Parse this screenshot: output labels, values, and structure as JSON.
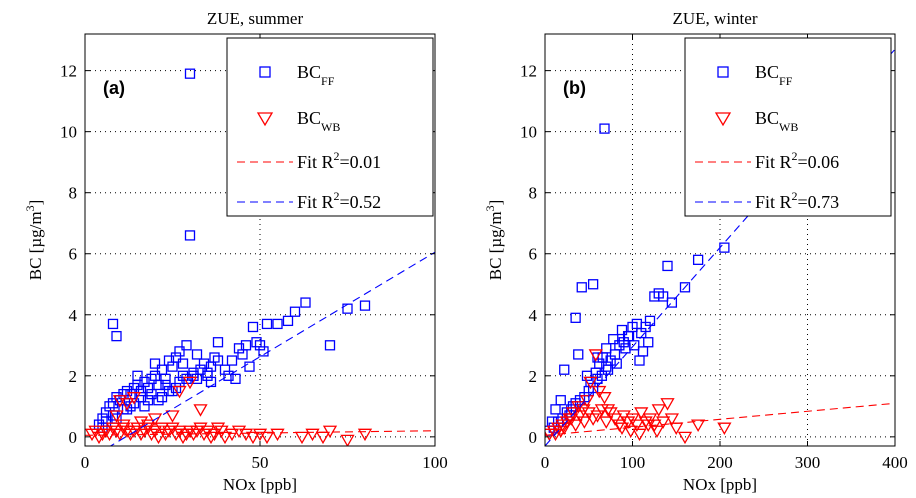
{
  "chart_data": [
    {
      "type": "scatter",
      "panel": "(a)",
      "title": "ZUE, summer",
      "xlabel": "NOx [ppb]",
      "ylabel": "BC [µg/m³]",
      "ylabel_parts": {
        "main": "BC [µg/m",
        "sup": "3",
        "end": "]"
      },
      "xlim": [
        0,
        100
      ],
      "ylim": [
        -0.3,
        13.2
      ],
      "xticks": [
        0,
        50,
        100
      ],
      "yticks": [
        0,
        2,
        4,
        6,
        8,
        10,
        12
      ],
      "grid": "dotted",
      "legend_placement": "top-right",
      "legend": [
        {
          "name": "BC",
          "sub": "FF",
          "sup": "",
          "marker": "square",
          "color": "#0000ff"
        },
        {
          "name": "BC",
          "sub": "WB",
          "sup": "",
          "marker": "triangle-down",
          "color": "#ff0000"
        },
        {
          "name": "Fit R",
          "sub": "",
          "sup": "2",
          "tail": "=0.01",
          "marker": "dashed-line",
          "color": "#ff0000"
        },
        {
          "name": "Fit R",
          "sub": "",
          "sup": "2",
          "tail": "=0.52",
          "marker": "dashed-line",
          "color": "#0000ff"
        }
      ],
      "series": [
        {
          "name": "BC_FF",
          "color": "#0000ff",
          "marker": "square",
          "x": [
            30,
            30,
            8,
            9,
            4,
            5,
            6,
            7,
            8,
            9,
            10,
            11,
            12,
            13,
            14,
            15,
            16,
            17,
            18,
            19,
            20,
            21,
            22,
            23,
            24,
            25,
            26,
            27,
            28,
            29,
            31,
            32,
            33,
            34,
            35,
            36,
            37,
            38,
            40,
            41,
            43,
            44,
            45,
            46,
            47,
            48,
            49,
            50,
            51,
            52,
            55,
            58,
            60,
            63,
            70,
            75,
            80,
            15,
            20,
            25,
            28,
            11,
            13,
            6,
            18,
            22,
            26,
            32,
            36,
            8,
            12,
            14,
            16,
            19,
            23,
            27,
            31,
            35,
            38,
            42,
            5,
            9,
            17,
            21,
            24,
            29
          ],
          "y": [
            11.9,
            6.6,
            3.7,
            3.3,
            0.4,
            0.6,
            0.8,
            1.0,
            1.1,
            1.3,
            1.2,
            1.4,
            1.5,
            1.4,
            1.6,
            1.7,
            1.5,
            1.8,
            1.6,
            1.9,
            2.0,
            1.7,
            2.2,
            1.9,
            2.5,
            2.3,
            2.6,
            2.8,
            2.4,
            3.0,
            2.1,
            2.7,
            2.2,
            2.4,
            2.0,
            1.8,
            2.6,
            3.1,
            2.2,
            2.0,
            1.9,
            2.9,
            2.7,
            3.0,
            2.3,
            3.6,
            3.1,
            3.0,
            2.8,
            3.7,
            3.7,
            3.8,
            4.1,
            4.4,
            3.0,
            4.2,
            4.3,
            2.0,
            2.4,
            1.5,
            2.0,
            0.9,
            1.0,
            0.5,
            1.2,
            1.3,
            1.6,
            1.9,
            2.3,
            0.7,
            0.9,
            1.1,
            1.3,
            1.4,
            1.7,
            1.8,
            2.0,
            2.1,
            2.5,
            2.5,
            0.3,
            0.6,
            1.0,
            1.2,
            1.5,
            1.9
          ]
        },
        {
          "name": "BC_WB",
          "color": "#ff0000",
          "marker": "triangle-down",
          "x": [
            2,
            3,
            4,
            5,
            6,
            7,
            8,
            9,
            10,
            11,
            12,
            13,
            14,
            15,
            16,
            17,
            18,
            19,
            20,
            21,
            22,
            23,
            24,
            25,
            26,
            27,
            28,
            29,
            30,
            31,
            32,
            33,
            34,
            35,
            36,
            37,
            38,
            39,
            40,
            42,
            44,
            46,
            48,
            50,
            52,
            55,
            62,
            65,
            68,
            70,
            75,
            80,
            10,
            12,
            14,
            16,
            18,
            27,
            30,
            33,
            20,
            25,
            9,
            11
          ],
          "y": [
            0.1,
            0.2,
            0.0,
            0.1,
            0.2,
            0.1,
            0.3,
            0.2,
            0.1,
            0.3,
            0.2,
            0.1,
            0.2,
            0.3,
            0.1,
            0.2,
            0.3,
            0.1,
            0.2,
            0.0,
            0.3,
            0.1,
            0.2,
            0.3,
            0.1,
            0.2,
            0.0,
            0.1,
            0.2,
            0.1,
            0.2,
            0.3,
            0.1,
            0.2,
            0.0,
            0.1,
            0.3,
            0.2,
            0.0,
            0.1,
            0.2,
            0.1,
            0.0,
            0.1,
            0.0,
            0.1,
            0.0,
            0.1,
            0.0,
            0.2,
            -0.1,
            0.1,
            1.2,
            1.1,
            1.3,
            0.5,
            0.4,
            1.5,
            1.8,
            0.9,
            0.6,
            0.7,
            0.7,
            0.4
          ]
        }
      ],
      "fits": [
        {
          "color": "#ff0000",
          "x": [
            0,
            100
          ],
          "y": [
            0.05,
            0.2
          ]
        },
        {
          "color": "#0000ff",
          "x": [
            0,
            100
          ],
          "y": [
            -0.8,
            6.05
          ]
        }
      ]
    },
    {
      "type": "scatter",
      "panel": "(b)",
      "title": "ZUE, winter",
      "xlabel": "NOx [ppb]",
      "ylabel": "BC [µg/m³]",
      "ylabel_parts": {
        "main": "BC [µg/m",
        "sup": "3",
        "end": "]"
      },
      "xlim": [
        0,
        400
      ],
      "ylim": [
        -0.3,
        13.2
      ],
      "xticks": [
        0,
        100,
        200,
        300,
        400
      ],
      "yticks": [
        0,
        2,
        4,
        6,
        8,
        10,
        12
      ],
      "grid": "dotted",
      "legend_placement": "top-right",
      "legend": [
        {
          "name": "BC",
          "sub": "FF",
          "sup": "",
          "marker": "square",
          "color": "#0000ff"
        },
        {
          "name": "BC",
          "sub": "WB",
          "sup": "",
          "marker": "triangle-down",
          "color": "#ff0000"
        },
        {
          "name": "Fit R",
          "sub": "",
          "sup": "2",
          "tail": "=0.06",
          "marker": "dashed-line",
          "color": "#ff0000"
        },
        {
          "name": "Fit R",
          "sub": "",
          "sup": "2",
          "tail": "=0.73",
          "marker": "dashed-line",
          "color": "#0000ff"
        }
      ],
      "series": [
        {
          "name": "BC_FF",
          "color": "#0000ff",
          "marker": "square",
          "x": [
            68,
            205,
            175,
            140,
            130,
            125,
            120,
            115,
            110,
            105,
            100,
            95,
            90,
            85,
            80,
            75,
            70,
            65,
            60,
            55,
            50,
            45,
            40,
            35,
            30,
            25,
            20,
            15,
            10,
            42,
            38,
            55,
            48,
            35,
            22,
            18,
            12,
            8,
            5,
            60,
            70,
            78,
            88,
            96,
            102,
            108,
            112,
            118,
            135,
            145,
            160,
            52,
            58,
            62,
            66,
            72,
            82,
            92,
            28,
            32
          ],
          "y": [
            10.1,
            6.2,
            5.8,
            5.6,
            4.7,
            4.6,
            3.8,
            3.6,
            3.4,
            3.7,
            3.6,
            3.3,
            3.1,
            3.0,
            2.7,
            2.5,
            2.3,
            2.0,
            1.9,
            1.6,
            1.5,
            1.3,
            1.2,
            1.1,
            0.9,
            0.8,
            0.6,
            0.5,
            0.3,
            4.9,
            2.7,
            5.0,
            2.0,
            3.9,
            2.2,
            1.2,
            0.9,
            0.5,
            0.2,
            2.6,
            2.9,
            3.2,
            3.5,
            3.3,
            3.0,
            2.5,
            2.8,
            3.1,
            4.6,
            4.4,
            4.9,
            1.8,
            2.1,
            2.4,
            2.6,
            2.2,
            2.4,
            2.9,
            0.7,
            1.0
          ]
        },
        {
          "name": "BC_WB",
          "color": "#ff0000",
          "marker": "triangle-down",
          "x": [
            5,
            10,
            15,
            20,
            25,
            30,
            35,
            40,
            45,
            50,
            55,
            60,
            65,
            70,
            75,
            80,
            85,
            90,
            95,
            100,
            105,
            110,
            115,
            120,
            125,
            130,
            135,
            140,
            145,
            150,
            160,
            175,
            205,
            52,
            58,
            62,
            48,
            44,
            38,
            32,
            28,
            22,
            18,
            12,
            68,
            72,
            88,
            98,
            108,
            118,
            128
          ],
          "y": [
            0.1,
            0.2,
            0.3,
            0.4,
            0.5,
            0.6,
            0.4,
            0.7,
            0.5,
            0.8,
            0.6,
            0.7,
            0.9,
            0.5,
            0.8,
            0.6,
            0.4,
            0.7,
            0.5,
            0.6,
            0.4,
            0.8,
            0.5,
            0.6,
            0.4,
            0.9,
            0.5,
            1.1,
            0.6,
            0.3,
            0.0,
            0.4,
            0.3,
            1.8,
            2.7,
            1.5,
            1.2,
            0.9,
            1.0,
            0.8,
            0.6,
            0.3,
            0.2,
            0.1,
            1.3,
            0.9,
            0.3,
            0.2,
            0.1,
            0.4,
            0.2
          ]
        }
      ],
      "fits": [
        {
          "color": "#ff0000",
          "x": [
            0,
            400
          ],
          "y": [
            0.05,
            1.1
          ]
        },
        {
          "color": "#0000ff",
          "x": [
            0,
            400
          ],
          "y": [
            -0.3,
            12.7
          ]
        }
      ]
    }
  ]
}
